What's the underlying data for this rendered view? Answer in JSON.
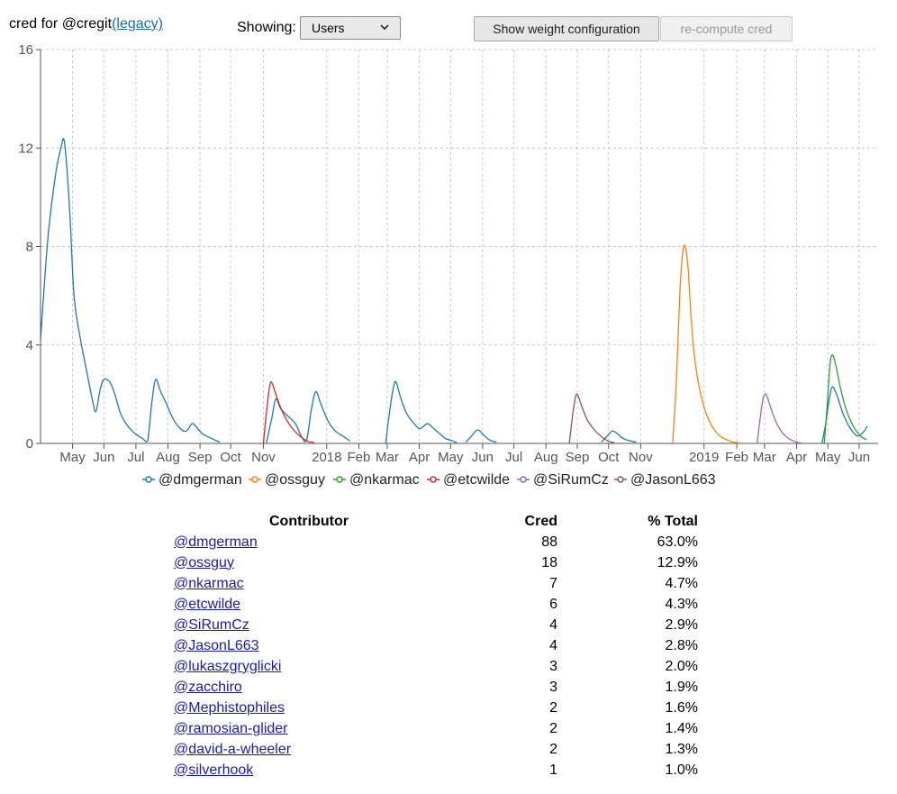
{
  "header": {
    "prefix": "cred for @cregit",
    "legacy_link": "(legacy)"
  },
  "controls": {
    "showing_label": "Showing:",
    "select_value": "Users",
    "weights_button": "Show weight configuration",
    "recompute_button": "re-compute cred"
  },
  "chart_data": {
    "type": "line",
    "ylim": [
      0,
      16
    ],
    "y_ticks": [
      "0",
      "4",
      "8",
      "12",
      "16"
    ],
    "x_tick_labels": [
      "May",
      "Jun",
      "Jul",
      "Aug",
      "Sep",
      "Oct",
      "Nov",
      "2018",
      "Feb",
      "Mar",
      "Apr",
      "May",
      "Jun",
      "Jul",
      "Aug",
      "Sep",
      "Oct",
      "Nov",
      "2019",
      "Feb",
      "Mar",
      "Apr",
      "May",
      "Jun"
    ],
    "x_ticks_weeks": [
      4.4,
      8.7,
      13.1,
      17.5,
      21.9,
      26.1,
      30.6,
      39.3,
      43.7,
      47.6,
      52.0,
      56.3,
      60.7,
      65.0,
      69.4,
      73.7,
      78.0,
      82.4,
      91.1,
      95.6,
      99.4,
      103.8,
      108.1,
      112.4
    ],
    "grid": true,
    "series": [
      {
        "name": "@dmgerman",
        "color": "#1f77b4",
        "points": [
          [
            0,
            4.2
          ],
          [
            1,
            8.3
          ],
          [
            2,
            10.8
          ],
          [
            2.8,
            12.0
          ],
          [
            3.3,
            12.2
          ],
          [
            4,
            9.5
          ],
          [
            4.6,
            6.0
          ],
          [
            5.5,
            4.2
          ],
          [
            6.3,
            3.0
          ],
          [
            7.1,
            1.8
          ],
          [
            7.6,
            1.3
          ],
          [
            8.2,
            2.2
          ],
          [
            8.7,
            2.6
          ],
          [
            9.5,
            2.5
          ],
          [
            10.2,
            2.0
          ],
          [
            11,
            1.2
          ],
          [
            12,
            0.7
          ],
          [
            13,
            0.4
          ],
          [
            14,
            0.2
          ],
          [
            14.7,
            0.1
          ],
          [
            15.3,
            1.7
          ],
          [
            15.8,
            2.6
          ],
          [
            16.5,
            2.1
          ],
          [
            17.3,
            1.6
          ],
          [
            18.2,
            1.0
          ],
          [
            19.2,
            0.6
          ],
          [
            20,
            0.5
          ],
          [
            20.8,
            0.8
          ],
          [
            21.3,
            0.7
          ],
          [
            22.2,
            0.4
          ],
          [
            23.5,
            0.2
          ],
          [
            24.6,
            0.05
          ]
        ]
      },
      {
        "name": "@dmgerman",
        "color": "#1f77b4",
        "points": [
          [
            31,
            0
          ],
          [
            31.8,
            1.1
          ],
          [
            32.3,
            1.8
          ],
          [
            33,
            1.4
          ],
          [
            34,
            1.1
          ],
          [
            35,
            0.8
          ],
          [
            35.8,
            0.3
          ],
          [
            36.5,
            0.1
          ],
          [
            37.2,
            1.4
          ],
          [
            37.8,
            2.1
          ],
          [
            38.5,
            1.6
          ],
          [
            39.5,
            0.9
          ],
          [
            40.5,
            0.5
          ],
          [
            41.5,
            0.3
          ],
          [
            42.5,
            0.1
          ]
        ]
      },
      {
        "name": "@dmgerman",
        "color": "#1f77b4",
        "points": [
          [
            47.4,
            0
          ],
          [
            47.8,
            1.0
          ],
          [
            48.4,
            2.2
          ],
          [
            48.8,
            2.5
          ],
          [
            49.5,
            1.8
          ],
          [
            50.3,
            1.2
          ],
          [
            51.3,
            0.8
          ],
          [
            52,
            0.6
          ],
          [
            52.6,
            0.7
          ],
          [
            53.2,
            0.8
          ],
          [
            54,
            0.6
          ],
          [
            54.8,
            0.4
          ],
          [
            55.6,
            0.2
          ],
          [
            56.6,
            0.1
          ],
          [
            57.2,
            0.02
          ]
        ]
      },
      {
        "name": "@dmgerman",
        "color": "#1f77b4",
        "points": [
          [
            58.4,
            0.05
          ],
          [
            59.2,
            0.3
          ],
          [
            60,
            0.55
          ],
          [
            60.8,
            0.35
          ],
          [
            61.6,
            0.15
          ],
          [
            62.6,
            0.05
          ]
        ]
      },
      {
        "name": "@dmgerman",
        "color": "#1f77b4",
        "points": [
          [
            77.0,
            0.05
          ],
          [
            77.8,
            0.3
          ],
          [
            78.5,
            0.5
          ],
          [
            79.2,
            0.4
          ],
          [
            80,
            0.2
          ],
          [
            81,
            0.1
          ],
          [
            81.8,
            0.05
          ]
        ]
      },
      {
        "name": "@dmgerman",
        "color": "#1f77b4",
        "points": [
          [
            107.3,
            0
          ],
          [
            107.8,
            0.8
          ],
          [
            108.3,
            1.8
          ],
          [
            108.7,
            2.3
          ],
          [
            109.3,
            2.0
          ],
          [
            110.2,
            1.2
          ],
          [
            111.2,
            0.6
          ],
          [
            112.2,
            0.3
          ],
          [
            113.1,
            0.5
          ],
          [
            113.5,
            0.7
          ]
        ]
      },
      {
        "name": "@ossguy",
        "color": "#ff7f0e",
        "points": [
          [
            86.8,
            0
          ],
          [
            87.3,
            2.5
          ],
          [
            87.8,
            6.2
          ],
          [
            88.2,
            7.8
          ],
          [
            88.5,
            8.0
          ],
          [
            88.9,
            7.2
          ],
          [
            89.3,
            5.2
          ],
          [
            89.8,
            3.5
          ],
          [
            90.5,
            2.2
          ],
          [
            91.3,
            1.3
          ],
          [
            92.2,
            0.7
          ],
          [
            93.3,
            0.3
          ],
          [
            94.8,
            0.08
          ],
          [
            96,
            0.02
          ]
        ]
      },
      {
        "name": "@nkarmac",
        "color": "#2ca02c",
        "points": [
          [
            107.6,
            0
          ],
          [
            108.0,
            1.5
          ],
          [
            108.4,
            3.2
          ],
          [
            108.7,
            3.6
          ],
          [
            109.1,
            3.3
          ],
          [
            109.8,
            2.3
          ],
          [
            110.6,
            1.4
          ],
          [
            111.6,
            0.7
          ],
          [
            112.6,
            0.3
          ],
          [
            113.4,
            0.15
          ]
        ]
      },
      {
        "name": "@etcwilde",
        "color": "#d62728",
        "points": [
          [
            30.6,
            0
          ],
          [
            31.0,
            1.2
          ],
          [
            31.4,
            2.2
          ],
          [
            31.7,
            2.5
          ],
          [
            32.2,
            2.1
          ],
          [
            32.9,
            1.5
          ],
          [
            33.7,
            1.0
          ],
          [
            34.6,
            0.6
          ],
          [
            35.6,
            0.3
          ],
          [
            36.6,
            0.1
          ],
          [
            37.6,
            0.03
          ]
        ]
      },
      {
        "name": "@SiRumCz",
        "color": "#9467bd",
        "points": [
          [
            98.4,
            0
          ],
          [
            98.8,
            1.0
          ],
          [
            99.2,
            1.8
          ],
          [
            99.6,
            2.0
          ],
          [
            100.1,
            1.6
          ],
          [
            100.8,
            1.0
          ],
          [
            101.7,
            0.5
          ],
          [
            102.7,
            0.2
          ],
          [
            103.8,
            0.05
          ],
          [
            104.5,
            0.02
          ]
        ]
      },
      {
        "name": "@JasonL663",
        "color": "#8c564b",
        "points": [
          [
            72.6,
            0
          ],
          [
            73.0,
            1.0
          ],
          [
            73.4,
            1.8
          ],
          [
            73.7,
            2.0
          ],
          [
            74.2,
            1.6
          ],
          [
            75.0,
            1.0
          ],
          [
            75.9,
            0.6
          ],
          [
            76.9,
            0.3
          ],
          [
            77.9,
            0.1
          ],
          [
            78.8,
            0.03
          ]
        ]
      }
    ],
    "legend": [
      "@dmgerman",
      "@ossguy",
      "@nkarmac",
      "@etcwilde",
      "@SiRumCz",
      "@JasonL663"
    ],
    "legend_colors": [
      "#1f77b4",
      "#ff7f0e",
      "#2ca02c",
      "#d62728",
      "#9467bd",
      "#8c564b"
    ],
    "legend_placement": "bottom"
  },
  "table": {
    "headers": [
      "Contributor",
      "Cred",
      "% Total"
    ],
    "rows": [
      {
        "name": "@dmgerman",
        "cred": "88",
        "pct": "63.0%"
      },
      {
        "name": "@ossguy",
        "cred": "18",
        "pct": "12.9%"
      },
      {
        "name": "@nkarmac",
        "cred": "7",
        "pct": "4.7%"
      },
      {
        "name": "@etcwilde",
        "cred": "6",
        "pct": "4.3%"
      },
      {
        "name": "@SiRumCz",
        "cred": "4",
        "pct": "2.9%"
      },
      {
        "name": "@JasonL663",
        "cred": "4",
        "pct": "2.8%"
      },
      {
        "name": "@lukaszgryglicki",
        "cred": "3",
        "pct": "2.0%"
      },
      {
        "name": "@zacchiro",
        "cred": "3",
        "pct": "1.9%"
      },
      {
        "name": "@Mephistophiles",
        "cred": "2",
        "pct": "1.6%"
      },
      {
        "name": "@ramosian-glider",
        "cred": "2",
        "pct": "1.4%"
      },
      {
        "name": "@david-a-wheeler",
        "cred": "2",
        "pct": "1.3%"
      },
      {
        "name": "@silverhook",
        "cred": "1",
        "pct": "1.0%"
      }
    ]
  }
}
